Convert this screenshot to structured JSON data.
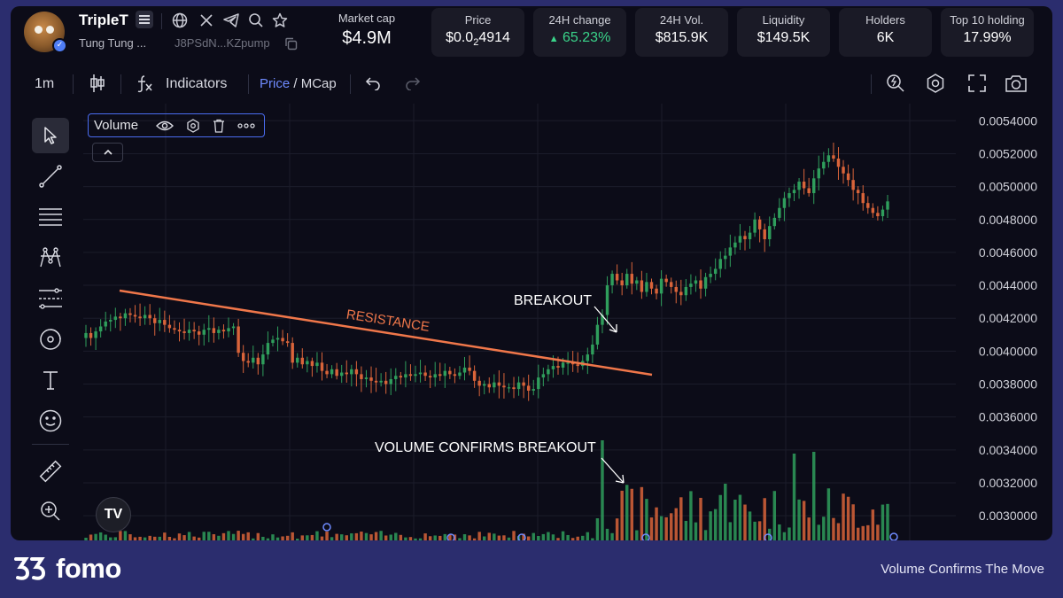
{
  "token": {
    "name": "TripleT",
    "subtitle": "Tung Tung ...",
    "address": "J8PSdN...KZpump"
  },
  "market_cap": {
    "label": "Market cap",
    "value": "$4.9M"
  },
  "stats": [
    {
      "label": "Price",
      "value_prefix": "$0.0",
      "value_sub": "2",
      "value_suffix": "4914"
    },
    {
      "label": "24H change",
      "value": "65.23%",
      "arrow": "▲"
    },
    {
      "label": "24H Vol.",
      "value": "$815.9K"
    },
    {
      "label": "Liquidity",
      "value": "$149.5K"
    },
    {
      "label": "Holders",
      "value": "6K"
    },
    {
      "label": "Top 10 holding",
      "value": "17.99%"
    }
  ],
  "toolbar": {
    "interval": "1m",
    "indicators_label": "Indicators",
    "price_label": "Price",
    "separator": " / ",
    "mcap_label": "MCap"
  },
  "volume_legend": {
    "label": "Volume"
  },
  "annotations": {
    "resistance": "RESISTANCE",
    "breakout": "BREAKOUT",
    "volume_confirms": "VOLUME CONFIRMS BREAKOUT"
  },
  "tv_logo_text": "TV",
  "footer": {
    "brand": "fomo",
    "tagline": "Volume Confirms The Move"
  },
  "colors": {
    "up": "#2f9e5c",
    "down": "#d9643a",
    "resistance": "#f0774a",
    "accent": "#6f8bff",
    "background": "#0c0c18",
    "frame": "#2b2d6e"
  },
  "chart_data": {
    "type": "candlestick",
    "y_tick_labels": [
      "0.0054000",
      "0.0052000",
      "0.0050000",
      "0.0048000",
      "0.0046000",
      "0.0044000",
      "0.0042000",
      "0.0040000",
      "0.0038000",
      "0.0036000",
      "0.0034000",
      "0.0032000",
      "0.0030000"
    ],
    "ylim": [
      0.00292,
      0.00545
    ],
    "close_prices": [
      0.00411,
      0.00408,
      0.00412,
      0.00415,
      0.00418,
      0.00419,
      0.00421,
      0.0042,
      0.00423,
      0.00422,
      0.00421,
      0.0042,
      0.00422,
      0.0042,
      0.00417,
      0.00419,
      0.00416,
      0.00414,
      0.00413,
      0.00412,
      0.00411,
      0.00413,
      0.00412,
      0.0041,
      0.00413,
      0.00414,
      0.00411,
      0.00413,
      0.00412,
      0.00414,
      0.00415,
      0.00399,
      0.00394,
      0.00393,
      0.00396,
      0.00392,
      0.00398,
      0.00405,
      0.00407,
      0.00408,
      0.00406,
      0.00405,
      0.00393,
      0.00396,
      0.00392,
      0.00394,
      0.00391,
      0.00393,
      0.00388,
      0.00386,
      0.00389,
      0.00385,
      0.00387,
      0.00386,
      0.00389,
      0.00386,
      0.00383,
      0.00384,
      0.00382,
      0.00381,
      0.00382,
      0.0038,
      0.00383,
      0.00385,
      0.00384,
      0.00386,
      0.00385,
      0.00386,
      0.00387,
      0.00385,
      0.00384,
      0.00386,
      0.00385,
      0.00388,
      0.00386,
      0.00385,
      0.00387,
      0.0039,
      0.00388,
      0.00382,
      0.00379,
      0.0038,
      0.00378,
      0.00381,
      0.00379,
      0.00378,
      0.00378,
      0.00377,
      0.00381,
      0.00379,
      0.00376,
      0.00377,
      0.00384,
      0.00386,
      0.00389,
      0.00391,
      0.0039,
      0.00393,
      0.00393,
      0.00392,
      0.00391,
      0.00394,
      0.00398,
      0.00404,
      0.00416,
      0.00422,
      0.0044,
      0.00447,
      0.00443,
      0.0044,
      0.00447,
      0.00441,
      0.00443,
      0.00436,
      0.00442,
      0.00438,
      0.00435,
      0.00444,
      0.00442,
      0.00439,
      0.00436,
      0.00434,
      0.00439,
      0.00441,
      0.00443,
      0.00438,
      0.00445,
      0.00447,
      0.0045,
      0.00456,
      0.00458,
      0.00463,
      0.00466,
      0.0047,
      0.00468,
      0.00472,
      0.0048,
      0.00474,
      0.00468,
      0.00476,
      0.00481,
      0.00487,
      0.00493,
      0.00496,
      0.00498,
      0.00503,
      0.00499,
      0.00496,
      0.00505,
      0.00511,
      0.00515,
      0.00519,
      0.00517,
      0.00512,
      0.00508,
      0.00504,
      0.00498,
      0.00496,
      0.0049,
      0.00487,
      0.00484,
      0.00482,
      0.00486,
      0.00491
    ],
    "volume_peak_labels": [
      "VOLUME CONFIRMS BREAKOUT"
    ]
  }
}
